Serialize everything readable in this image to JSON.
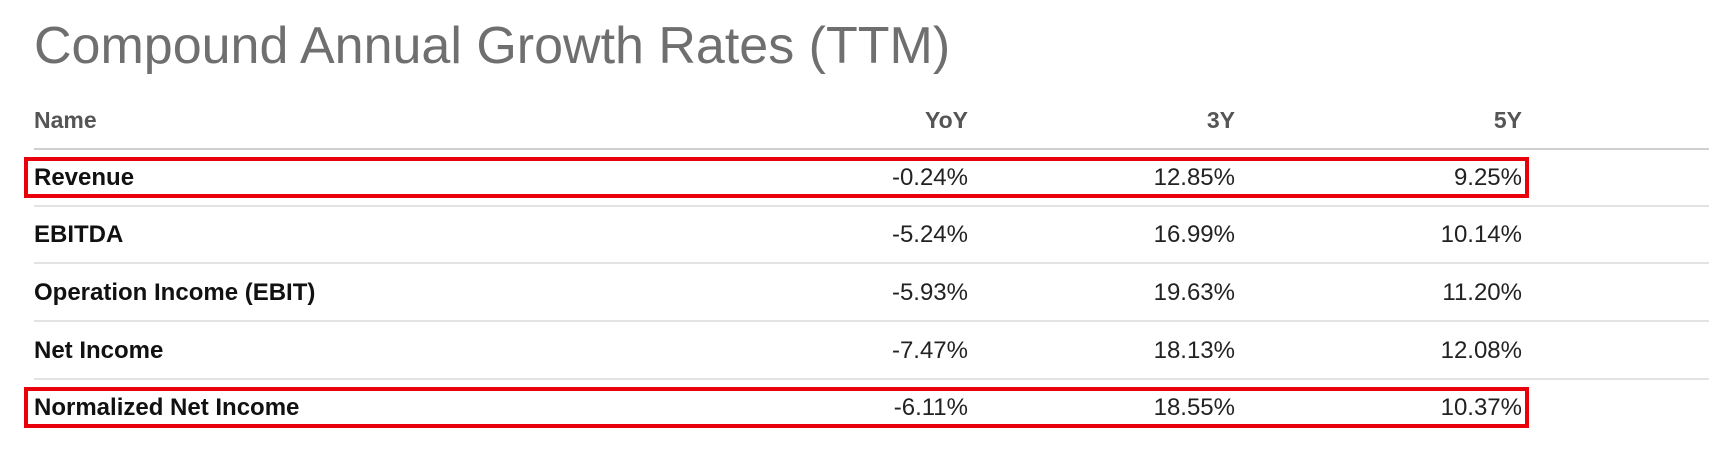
{
  "title": "Compound Annual Growth Rates (TTM)",
  "columns": [
    "Name",
    "YoY",
    "3Y",
    "5Y"
  ],
  "rows": [
    {
      "name": "Revenue",
      "yoy": "-0.24%",
      "y3": "12.85%",
      "y5": "9.25%",
      "highlighted": true
    },
    {
      "name": "EBITDA",
      "yoy": "-5.24%",
      "y3": "16.99%",
      "y5": "10.14%",
      "highlighted": false
    },
    {
      "name": "Operation Income (EBIT)",
      "yoy": "-5.93%",
      "y3": "19.63%",
      "y5": "11.20%",
      "highlighted": false
    },
    {
      "name": "Net Income",
      "yoy": "-7.47%",
      "y3": "18.13%",
      "y5": "12.08%",
      "highlighted": false
    },
    {
      "name": "Normalized Net Income",
      "yoy": "-6.11%",
      "y3": "18.55%",
      "y5": "10.37%",
      "highlighted": true
    }
  ],
  "colors": {
    "title": "#6f6f6f",
    "highlight_border": "#e8000b",
    "row_divider": "#e3e3e3"
  }
}
